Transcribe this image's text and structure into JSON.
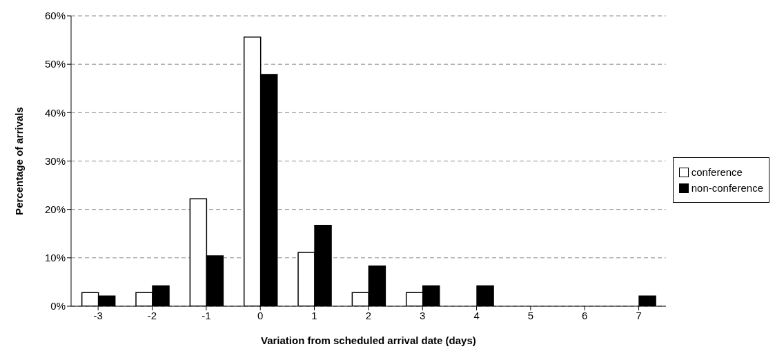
{
  "chart_data": {
    "type": "bar",
    "xlabel": "Variation from scheduled arrival date (days)",
    "ylabel": "Percentage of arrivals",
    "categories": [
      "-3",
      "-2",
      "-1",
      "0",
      "1",
      "2",
      "3",
      "4",
      "5",
      "6",
      "7"
    ],
    "series": [
      {
        "name": "conference",
        "color": "#ffffff",
        "values": [
          2.8,
          2.8,
          22.2,
          55.6,
          11.1,
          2.8,
          2.8,
          0,
          0,
          0,
          0
        ]
      },
      {
        "name": "non-conference",
        "color": "#000000",
        "values": [
          2.1,
          4.2,
          10.4,
          47.9,
          16.7,
          8.3,
          4.2,
          4.2,
          0,
          0,
          2.1
        ]
      }
    ],
    "ylim": [
      0,
      60
    ],
    "yticks": [
      {
        "value": 0,
        "label": "0%"
      },
      {
        "value": 10,
        "label": "10%"
      },
      {
        "value": 20,
        "label": "20%"
      },
      {
        "value": 30,
        "label": "30%"
      },
      {
        "value": 40,
        "label": "40%"
      },
      {
        "value": 50,
        "label": "50%"
      },
      {
        "value": 60,
        "label": "60%"
      }
    ],
    "grid": "y",
    "legend": "right"
  }
}
